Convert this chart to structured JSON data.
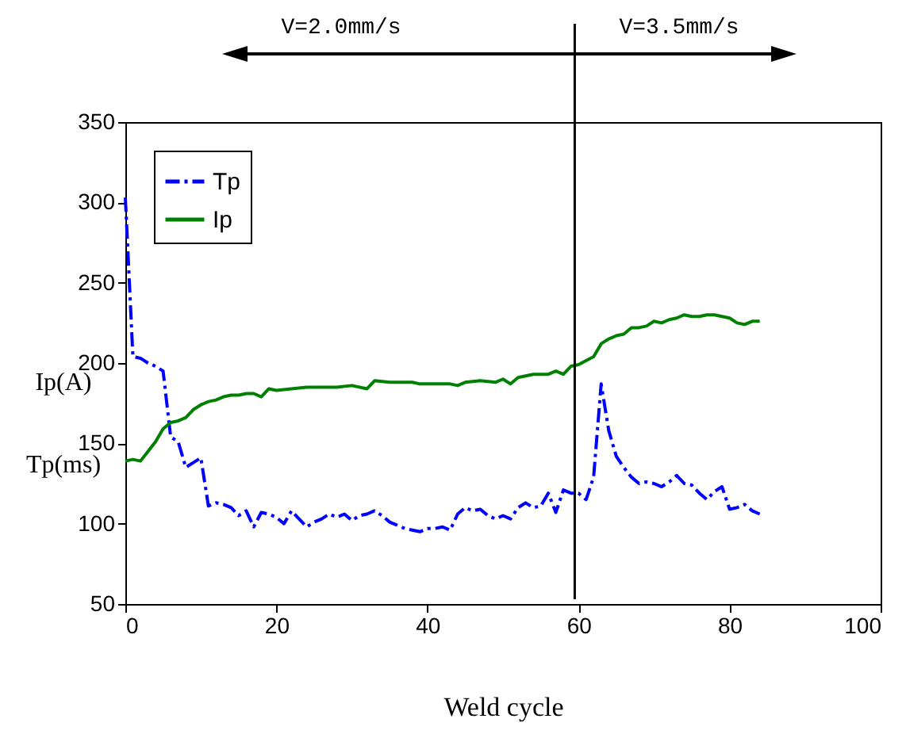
{
  "chart_data": {
    "type": "line",
    "xlabel": "Weld cycle",
    "annotations": [
      "V=2.0mm/s",
      "V=3.5mm/s",
      "Ip(A)",
      "Tp(ms)"
    ],
    "xlim": [
      0,
      100
    ],
    "xticks": [
      0,
      20,
      40,
      60,
      80,
      100
    ],
    "ylim": [
      50,
      350
    ],
    "yticks": [
      50,
      100,
      150,
      200,
      250,
      300,
      350
    ],
    "grid": false,
    "legend": "top left",
    "marker": "none",
    "ref_lines": [
      {
        "axis": "x",
        "value": 59.5,
        "color": "#000000"
      }
    ],
    "series": [
      {
        "name": "Tp",
        "color": "#0000ff",
        "line_style": "dashed",
        "x": [
          0,
          1,
          2,
          3,
          4,
          5,
          6,
          7,
          8,
          9,
          10,
          11,
          12,
          13,
          14,
          15,
          16,
          17,
          18,
          19,
          20,
          21,
          22,
          23,
          24,
          25,
          26,
          27,
          28,
          29,
          30,
          31,
          32,
          33,
          34,
          35,
          36,
          37,
          38,
          39,
          40,
          41,
          42,
          43,
          44,
          45,
          46,
          47,
          48,
          49,
          50,
          51,
          52,
          53,
          54,
          55,
          56,
          57,
          58,
          59,
          60,
          61,
          62,
          63,
          64,
          65,
          66,
          67,
          68,
          69,
          70,
          71,
          72,
          73,
          74,
          75,
          76,
          77,
          78,
          79,
          80,
          81,
          82,
          83,
          84
        ],
        "values": [
          303,
          204,
          203,
          200,
          198,
          195,
          154,
          151,
          135,
          138,
          141,
          111,
          113,
          112,
          110,
          105,
          108,
          98,
          107,
          106,
          104,
          100,
          108,
          103,
          98,
          101,
          103,
          106,
          104,
          106,
          102,
          105,
          106,
          108,
          105,
          101,
          99,
          97,
          96,
          95,
          97,
          97,
          98,
          96,
          106,
          110,
          108,
          109,
          105,
          103,
          105,
          103,
          110,
          113,
          110,
          111,
          119,
          107,
          121,
          119,
          119,
          115,
          129,
          187,
          158,
          142,
          135,
          129,
          125,
          126,
          125,
          123,
          126,
          130,
          125,
          124,
          119,
          115,
          120,
          123,
          109,
          110,
          112,
          108,
          106
        ]
      },
      {
        "name": "Ip",
        "color": "#008000",
        "line_style": "solid",
        "x": [
          0,
          1,
          2,
          3,
          4,
          5,
          6,
          7,
          8,
          9,
          10,
          11,
          12,
          13,
          14,
          15,
          16,
          17,
          18,
          19,
          20,
          22,
          24,
          26,
          28,
          30,
          32,
          33,
          35,
          37,
          38,
          39,
          41,
          43,
          44,
          45,
          47,
          49,
          50,
          51,
          52,
          54,
          56,
          57,
          58,
          59,
          60,
          62,
          63,
          64,
          65,
          66,
          67,
          68,
          69,
          70,
          71,
          72,
          73,
          74,
          75,
          76,
          77,
          78,
          79,
          80,
          81,
          82,
          83,
          84
        ],
        "values": [
          139,
          140,
          139,
          145,
          151,
          159,
          163,
          164,
          166,
          171,
          174,
          176,
          177,
          179,
          180,
          180,
          181,
          181,
          179,
          184,
          183,
          184,
          185,
          185,
          185,
          186,
          184,
          189,
          188,
          188,
          188,
          187,
          187,
          187,
          186,
          188,
          189,
          188,
          190,
          187,
          191,
          193,
          193,
          195,
          193,
          198,
          199,
          204,
          212,
          215,
          217,
          218,
          222,
          222,
          223,
          226,
          225,
          227,
          228,
          230,
          229,
          229,
          230,
          230,
          229,
          228,
          225,
          224,
          226,
          226
        ]
      }
    ]
  }
}
